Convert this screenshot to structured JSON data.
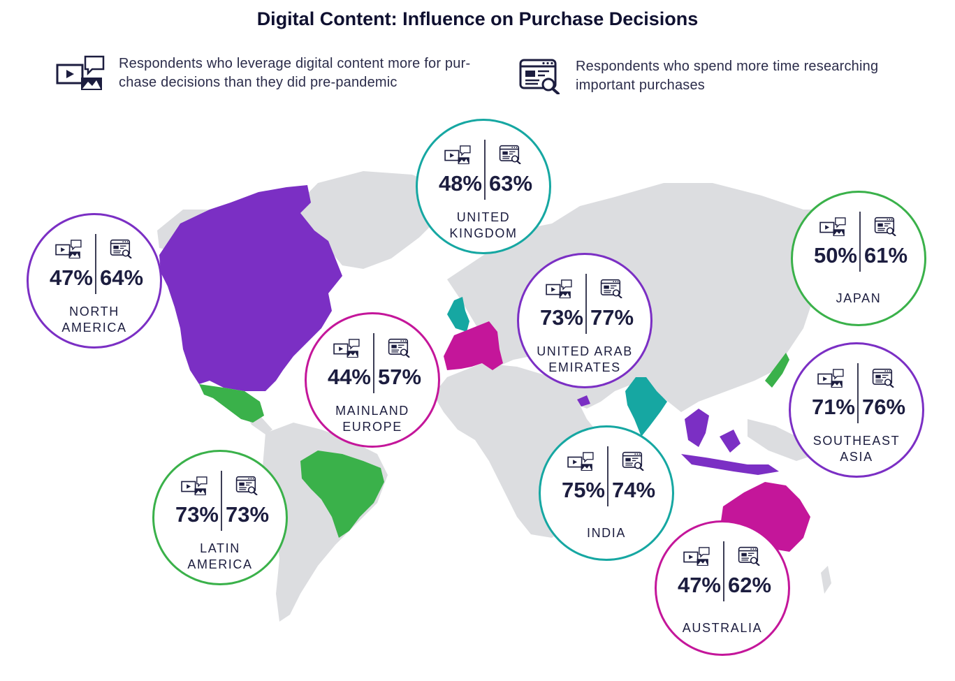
{
  "title": "Digital Content: Influence on Purchase Decisions",
  "legend": {
    "digital_content": {
      "icon": "media-chat-icon",
      "text": "Respondents who leverage digital content more for pur- chase decisions than they did pre-pandemic"
    },
    "research": {
      "icon": "browser-search-icon",
      "text": "Respondents who spend more time researching important purchases"
    }
  },
  "colors": {
    "purple": "#7b2fc4",
    "magenta": "#c4169a",
    "teal": "#16a7a2",
    "green": "#3ab14a",
    "land": "#dcdde0"
  },
  "regions": [
    {
      "id": "uk",
      "name": "UNITED KINGDOM",
      "digital": "48%",
      "research": "63%",
      "color": "teal"
    },
    {
      "id": "north_america",
      "name": "NORTH AMERICA",
      "digital": "47%",
      "research": "64%",
      "color": "purple"
    },
    {
      "id": "japan",
      "name": "JAPAN",
      "digital": "50%",
      "research": "61%",
      "color": "green"
    },
    {
      "id": "uae",
      "name": "UNITED ARAB EMIRATES",
      "digital": "73%",
      "research": "77%",
      "color": "purple"
    },
    {
      "id": "europe",
      "name": "MAINLAND EUROPE",
      "digital": "44%",
      "research": "57%",
      "color": "magenta"
    },
    {
      "id": "southeast_asia",
      "name": "SOUTHEAST ASIA",
      "digital": "71%",
      "research": "76%",
      "color": "purple"
    },
    {
      "id": "india",
      "name": "INDIA",
      "digital": "75%",
      "research": "74%",
      "color": "teal"
    },
    {
      "id": "latin_america",
      "name": "LATIN AMERICA",
      "digital": "73%",
      "research": "73%",
      "color": "green"
    },
    {
      "id": "australia",
      "name": "AUSTRALIA",
      "digital": "47%",
      "research": "62%",
      "color": "magenta"
    }
  ]
}
